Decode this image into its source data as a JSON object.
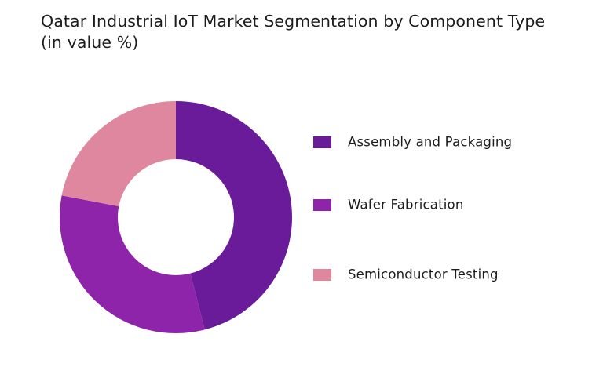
{
  "title": {
    "line1": "Qatar Industrial IoT Market  Segmentation by Component Type",
    "line2": "(in value %)"
  },
  "legend": {
    "items": [
      {
        "label": "Assembly and Packaging",
        "color": "#6a1b9a"
      },
      {
        "label": "Wafer Fabrication",
        "color": "#8e24aa"
      },
      {
        "label": "Semiconductor Testing",
        "color": "#de879e"
      }
    ]
  },
  "chart_data": {
    "type": "pie",
    "subtype": "donut",
    "title": "Qatar Industrial IoT Market  Segmentation by Component Type (in value %)",
    "categories": [
      "Assembly and Packaging",
      "Wafer Fabrication",
      "Semiconductor Testing"
    ],
    "values": [
      46,
      32,
      22
    ],
    "colors": [
      "#6a1b9a",
      "#8e24aa",
      "#de879e"
    ],
    "unit": "%",
    "start_angle": "12 o'clock, clockwise",
    "data_labels": false,
    "legend_position": "right"
  }
}
